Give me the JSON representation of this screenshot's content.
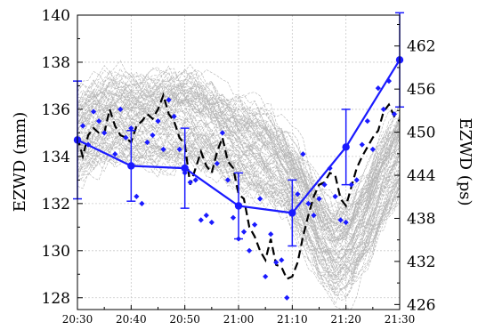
{
  "chart_data": {
    "type": "line",
    "title": "",
    "xlabel": "",
    "ylabel": "EZWD (mm)",
    "ylabel_right": "EZWD (ps)",
    "x_ticks": [
      "20:30",
      "20:40",
      "20:50",
      "21:00",
      "21:10",
      "21:20",
      "21:30"
    ],
    "y_ticks_left": [
      "128",
      "130",
      "132",
      "134",
      "136",
      "138",
      "140"
    ],
    "y_ticks_right": [
      "426",
      "432",
      "438",
      "444",
      "450",
      "456",
      "462"
    ],
    "xlim_minutes": [
      0,
      60
    ],
    "ylim": [
      127.5,
      140
    ],
    "ylim_right": [
      425.3,
      466.3
    ],
    "grid": true,
    "ensemble": {
      "name": "",
      "count": 90,
      "color": "#b4b4b4",
      "mean_profile": [
        [
          0,
          134.9
        ],
        [
          3,
          135.3
        ],
        [
          6,
          135.6
        ],
        [
          9,
          135.7
        ],
        [
          12,
          135.6
        ],
        [
          15,
          135.5
        ],
        [
          18,
          135.6
        ],
        [
          21,
          135.8
        ],
        [
          24,
          135.4
        ],
        [
          27,
          134.9
        ],
        [
          30,
          134.5
        ],
        [
          33,
          134.3
        ],
        [
          36,
          134.0
        ],
        [
          39,
          133.3
        ],
        [
          42,
          132.2
        ],
        [
          45,
          130.9
        ],
        [
          48,
          130.0
        ],
        [
          51,
          130.3
        ],
        [
          54,
          131.6
        ],
        [
          57,
          133.1
        ],
        [
          60,
          134.4
        ]
      ]
    },
    "series": [
      {
        "name": "",
        "style": "dashed",
        "color": "#000000",
        "x": [
          0,
          1,
          2,
          3,
          4,
          5,
          6,
          7,
          8,
          9,
          10,
          11,
          12,
          13,
          14,
          15,
          16,
          17,
          18,
          19,
          20,
          21,
          22,
          23,
          24,
          25,
          26,
          27,
          28,
          29,
          30,
          31,
          32,
          33,
          34,
          35,
          36,
          37,
          38,
          39,
          40,
          41,
          42,
          43,
          44,
          45,
          46,
          47,
          48,
          49,
          50,
          51,
          52,
          53,
          54,
          55,
          56,
          57,
          58,
          59,
          60
        ],
        "values": [
          134.8,
          134.0,
          134.9,
          135.2,
          135.0,
          135.0,
          136.0,
          135.3,
          134.9,
          134.8,
          134.6,
          135.3,
          135.5,
          135.8,
          135.6,
          136.0,
          136.6,
          135.8,
          135.5,
          134.8,
          134.5,
          132.8,
          133.5,
          134.2,
          133.6,
          133.3,
          134.2,
          134.8,
          133.8,
          133.5,
          132.4,
          132.2,
          131.0,
          130.6,
          130.0,
          129.6,
          130.5,
          129.4,
          129.3,
          128.8,
          128.9,
          129.5,
          130.6,
          131.5,
          132.3,
          132.8,
          132.9,
          133.3,
          133.2,
          132.2,
          131.9,
          132.7,
          133.5,
          134.0,
          134.4,
          134.8,
          135.1,
          135.9,
          136.2,
          135.7,
          135.5
        ]
      },
      {
        "name": "",
        "style": "solid-markers-errorbars",
        "color": "#1a1aff",
        "x": [
          0,
          10,
          20,
          30,
          40,
          50,
          60
        ],
        "values": [
          134.7,
          133.6,
          133.5,
          131.9,
          131.6,
          134.4,
          138.1
        ],
        "error": [
          2.5,
          1.5,
          1.7,
          1.4,
          1.4,
          1.6,
          2.0
        ]
      },
      {
        "name": "",
        "style": "markers",
        "color": "#1a1aff",
        "x": [
          1,
          2,
          3,
          4,
          5,
          7,
          8,
          9,
          10,
          11,
          12,
          13,
          14,
          15,
          16,
          17,
          18,
          19,
          20,
          21,
          22,
          23,
          24,
          25,
          26,
          27,
          28,
          29,
          30,
          31,
          32,
          33,
          34,
          35,
          36,
          37,
          38,
          39,
          41,
          42,
          43,
          44,
          45,
          46,
          47,
          48,
          49,
          50,
          51,
          52,
          53,
          54,
          55,
          56,
          57,
          58,
          59
        ],
        "values": [
          135.3,
          134.5,
          135.9,
          135.5,
          135.0,
          134.1,
          136.0,
          134.8,
          135.2,
          132.3,
          132.0,
          134.6,
          134.9,
          135.5,
          134.3,
          136.4,
          135.7,
          134.3,
          133.3,
          132.9,
          133.0,
          131.3,
          131.5,
          131.2,
          133.7,
          135.0,
          133.0,
          131.4,
          130.5,
          130.8,
          130.0,
          131.1,
          132.2,
          128.9,
          130.7,
          129.5,
          129.6,
          128.0,
          132.4,
          134.1,
          132.0,
          131.5,
          132.2,
          132.8,
          133.5,
          132.3,
          131.3,
          131.2,
          132.8,
          133.0,
          134.5,
          135.5,
          134.3,
          136.9,
          136.0,
          137.2,
          135.8
        ]
      }
    ]
  }
}
